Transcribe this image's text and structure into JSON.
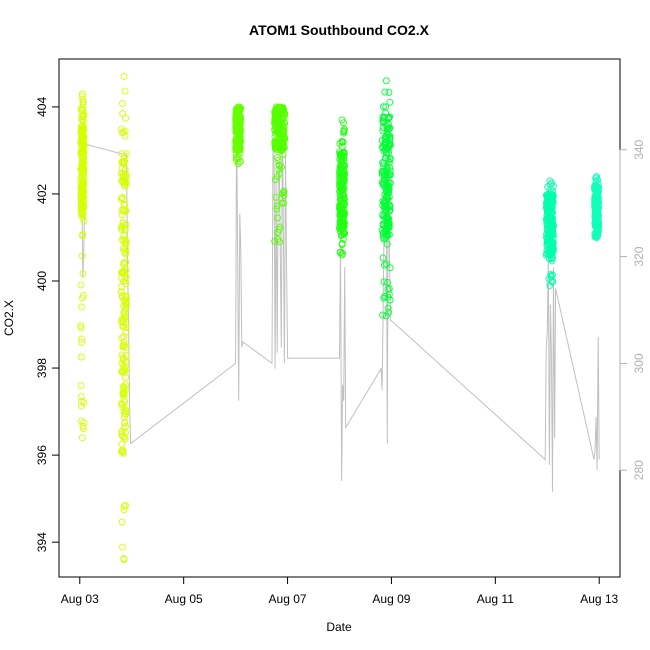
{
  "chart_data": {
    "type": "scatter",
    "title": "ATOM1 Southbound CO2.X",
    "xlabel": "Date",
    "ylabel": "CO2.X",
    "x_ticks": [
      "Aug 03",
      "Aug 05",
      "Aug 07",
      "Aug 09",
      "Aug 11",
      "Aug 13"
    ],
    "x_tick_values": [
      3,
      5,
      7,
      9,
      11,
      13
    ],
    "xlim": [
      2.6,
      13.4
    ],
    "y_ticks": [
      394,
      396,
      398,
      400,
      402,
      404
    ],
    "ylim": [
      393.2,
      405.1
    ],
    "y2_ticks": [
      280,
      300,
      320,
      340
    ],
    "y2lim": [
      260,
      357
    ],
    "grid": false,
    "legend": "none",
    "point_clusters": [
      {
        "x_center": 3.05,
        "x_spread": 0.03,
        "y_min": 396.4,
        "y_max": 404.3,
        "y_dense_min": 401.5,
        "y_dense_max": 404.0,
        "color": "#d6ff00"
      },
      {
        "x_center": 3.85,
        "x_spread": 0.05,
        "y_min": 393.6,
        "y_max": 404.7,
        "y_dense_min": 396.0,
        "y_dense_max": 403.0,
        "color": "#d6ff00"
      },
      {
        "x_center": 6.05,
        "x_spread": 0.05,
        "y_min": 402.7,
        "y_max": 404.0,
        "y_dense_min": 403.0,
        "y_dense_max": 404.0,
        "color": "#66ff00"
      },
      {
        "x_center": 6.85,
        "x_spread": 0.1,
        "y_min": 400.9,
        "y_max": 404.0,
        "y_dense_min": 403.0,
        "y_dense_max": 404.0,
        "color": "#55ff00"
      },
      {
        "x_center": 8.05,
        "x_spread": 0.05,
        "y_min": 400.6,
        "y_max": 403.7,
        "y_dense_min": 401.0,
        "y_dense_max": 403.0,
        "color": "#22ff11"
      },
      {
        "x_center": 8.9,
        "x_spread": 0.08,
        "y_min": 399.2,
        "y_max": 404.6,
        "y_dense_min": 401.0,
        "y_dense_max": 403.8,
        "color": "#00ff33"
      },
      {
        "x_center": 12.05,
        "x_spread": 0.07,
        "y_min": 399.9,
        "y_max": 402.3,
        "y_dense_min": 400.5,
        "y_dense_max": 402.0,
        "color": "#00ffaa"
      },
      {
        "x_center": 12.95,
        "x_spread": 0.04,
        "y_min": 401.0,
        "y_max": 402.4,
        "y_dense_min": 401.0,
        "y_dense_max": 402.2,
        "color": "#11ffbb"
      }
    ],
    "trace_series": {
      "name": "",
      "axis": "right",
      "color": "#c0c0c0",
      "x": [
        3.0,
        3.02,
        3.04,
        3.06,
        3.08,
        3.1,
        3.12,
        3.9,
        3.92,
        3.94,
        3.96,
        3.98,
        6.0,
        6.02,
        6.04,
        6.06,
        6.08,
        6.1,
        6.12,
        6.14,
        6.7,
        6.72,
        6.74,
        6.76,
        6.78,
        6.8,
        6.82,
        6.84,
        6.86,
        6.88,
        6.9,
        6.92,
        6.94,
        6.96,
        6.98,
        7.0,
        8.0,
        8.02,
        8.04,
        8.06,
        8.08,
        8.1,
        8.12,
        8.8,
        8.82,
        8.84,
        8.86,
        8.88,
        8.9,
        8.92,
        8.94,
        8.96,
        8.98,
        9.0,
        11.96,
        11.98,
        12.0,
        12.02,
        12.04,
        12.06,
        12.08,
        12.1,
        12.12,
        12.14,
        12.16,
        12.9,
        12.92,
        12.94,
        12.96,
        12.98,
        13.0
      ],
      "y": [
        340,
        341,
        330,
        316,
        322,
        334,
        341,
        339,
        318,
        307,
        292,
        285,
        300,
        346,
        319,
        293,
        328,
        321,
        303,
        304,
        300,
        340,
        337,
        299,
        335,
        302,
        333,
        338,
        321,
        303,
        345,
        325,
        300,
        339,
        319,
        301,
        301,
        322,
        278,
        296,
        293,
        318,
        288,
        299,
        295,
        310,
        327,
        326,
        338,
        285,
        342,
        322,
        308,
        308,
        282,
        303,
        306,
        320,
        281,
        311,
        302,
        276,
        318,
        286,
        314,
        282,
        284,
        290,
        280,
        305,
        282
      ]
    }
  }
}
